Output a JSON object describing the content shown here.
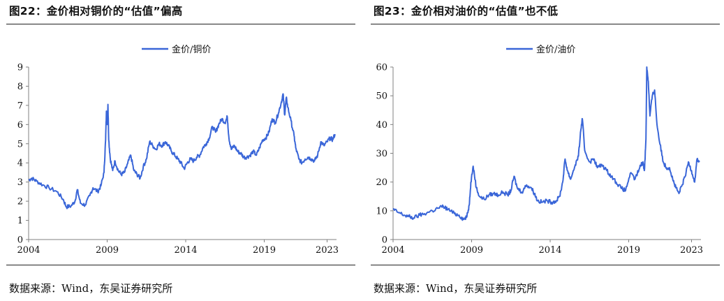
{
  "colors": {
    "series": "#3a66d8",
    "axis": "#808080",
    "rule": "#222222"
  },
  "chart_data": [
    {
      "type": "line",
      "title": "图22：金价相对铜价的“估值”偏高",
      "source": "数据来源：Wind，东吴证券研究所",
      "legend": "金价/铜价",
      "legend_position": "top-center",
      "xlim": [
        2004,
        2023.6
      ],
      "ylim": [
        0,
        9
      ],
      "xticks": [
        2004,
        2009,
        2014,
        2019,
        2023
      ],
      "yticks": [
        0,
        1,
        2,
        3,
        4,
        5,
        6,
        7,
        8,
        9
      ],
      "grid": false,
      "series": [
        {
          "name": "金价/铜价",
          "points": [
            [
              2004.0,
              3.1
            ],
            [
              2004.2,
              3.2
            ],
            [
              2004.5,
              3.05
            ],
            [
              2004.9,
              2.85
            ],
            [
              2005.3,
              2.7
            ],
            [
              2005.8,
              2.5
            ],
            [
              2006.2,
              2.1
            ],
            [
              2006.4,
              1.7
            ],
            [
              2006.7,
              1.75
            ],
            [
              2006.95,
              2.0
            ],
            [
              2007.1,
              2.6
            ],
            [
              2007.3,
              1.9
            ],
            [
              2007.6,
              1.8
            ],
            [
              2007.9,
              2.3
            ],
            [
              2008.1,
              2.7
            ],
            [
              2008.4,
              2.5
            ],
            [
              2008.6,
              2.8
            ],
            [
              2008.8,
              3.5
            ],
            [
              2008.9,
              5.2
            ],
            [
              2008.95,
              6.7
            ],
            [
              2009.0,
              6.0
            ],
            [
              2009.05,
              7.05
            ],
            [
              2009.1,
              5.2
            ],
            [
              2009.2,
              4.2
            ],
            [
              2009.35,
              3.6
            ],
            [
              2009.5,
              4.1
            ],
            [
              2009.7,
              3.6
            ],
            [
              2009.9,
              3.4
            ],
            [
              2010.1,
              3.5
            ],
            [
              2010.3,
              3.95
            ],
            [
              2010.5,
              4.4
            ],
            [
              2010.7,
              3.6
            ],
            [
              2010.9,
              3.4
            ],
            [
              2011.1,
              3.2
            ],
            [
              2011.3,
              3.8
            ],
            [
              2011.5,
              4.2
            ],
            [
              2011.7,
              5.1
            ],
            [
              2011.9,
              4.9
            ],
            [
              2012.1,
              4.7
            ],
            [
              2012.3,
              5.0
            ],
            [
              2012.5,
              4.9
            ],
            [
              2012.7,
              5.1
            ],
            [
              2012.9,
              4.9
            ],
            [
              2013.1,
              4.6
            ],
            [
              2013.3,
              4.4
            ],
            [
              2013.5,
              4.2
            ],
            [
              2013.7,
              4.0
            ],
            [
              2013.9,
              3.7
            ],
            [
              2014.1,
              4.0
            ],
            [
              2014.3,
              4.2
            ],
            [
              2014.5,
              4.1
            ],
            [
              2014.7,
              4.3
            ],
            [
              2014.9,
              4.4
            ],
            [
              2015.1,
              4.8
            ],
            [
              2015.3,
              5.0
            ],
            [
              2015.5,
              5.3
            ],
            [
              2015.7,
              5.9
            ],
            [
              2015.9,
              5.6
            ],
            [
              2016.1,
              6.0
            ],
            [
              2016.3,
              6.3
            ],
            [
              2016.5,
              6.1
            ],
            [
              2016.65,
              6.4
            ],
            [
              2016.75,
              5.3
            ],
            [
              2016.9,
              4.7
            ],
            [
              2017.1,
              4.9
            ],
            [
              2017.3,
              4.6
            ],
            [
              2017.5,
              4.5
            ],
            [
              2017.7,
              4.3
            ],
            [
              2017.9,
              4.3
            ],
            [
              2018.1,
              4.4
            ],
            [
              2018.3,
              4.6
            ],
            [
              2018.5,
              4.4
            ],
            [
              2018.7,
              4.8
            ],
            [
              2018.9,
              5.2
            ],
            [
              2019.1,
              5.3
            ],
            [
              2019.3,
              5.6
            ],
            [
              2019.5,
              6.3
            ],
            [
              2019.7,
              6.1
            ],
            [
              2019.9,
              6.6
            ],
            [
              2020.1,
              7.2
            ],
            [
              2020.2,
              7.6
            ],
            [
              2020.3,
              6.5
            ],
            [
              2020.4,
              7.4
            ],
            [
              2020.5,
              6.9
            ],
            [
              2020.7,
              6.2
            ],
            [
              2020.9,
              5.4
            ],
            [
              2021.0,
              4.8
            ],
            [
              2021.2,
              4.2
            ],
            [
              2021.4,
              4.0
            ],
            [
              2021.6,
              4.2
            ],
            [
              2021.8,
              4.3
            ],
            [
              2022.0,
              4.2
            ],
            [
              2022.2,
              4.1
            ],
            [
              2022.4,
              4.4
            ],
            [
              2022.6,
              5.1
            ],
            [
              2022.8,
              4.9
            ],
            [
              2023.0,
              5.1
            ],
            [
              2023.2,
              5.3
            ],
            [
              2023.35,
              5.2
            ],
            [
              2023.5,
              5.5
            ]
          ]
        }
      ]
    },
    {
      "type": "line",
      "title": "图23：金价相对油价的“估值”也不低",
      "source": "数据来源：Wind，东吴证券研究所",
      "legend": "金价/油价",
      "legend_position": "top-center",
      "xlim": [
        2004,
        2023.6
      ],
      "ylim": [
        0,
        60
      ],
      "xticks": [
        2004,
        2009,
        2014,
        2019,
        2023
      ],
      "yticks": [
        0,
        10,
        20,
        30,
        40,
        50,
        60
      ],
      "grid": false,
      "series": [
        {
          "name": "金价/油价",
          "points": [
            [
              2004.0,
              10.5
            ],
            [
              2004.3,
              9.5
            ],
            [
              2004.7,
              8.5
            ],
            [
              2005.0,
              8.0
            ],
            [
              2005.3,
              7.5
            ],
            [
              2005.7,
              8.5
            ],
            [
              2006.0,
              9.0
            ],
            [
              2006.5,
              10.0
            ],
            [
              2006.9,
              11.0
            ],
            [
              2007.2,
              11.5
            ],
            [
              2007.5,
              10.5
            ],
            [
              2007.9,
              9.0
            ],
            [
              2008.2,
              8.5
            ],
            [
              2008.5,
              7.0
            ],
            [
              2008.7,
              8.0
            ],
            [
              2008.85,
              12.0
            ],
            [
              2008.95,
              20.0
            ],
            [
              2009.1,
              25.5
            ],
            [
              2009.3,
              18.0
            ],
            [
              2009.5,
              15.0
            ],
            [
              2009.8,
              14.0
            ],
            [
              2010.1,
              15.5
            ],
            [
              2010.4,
              16.0
            ],
            [
              2010.7,
              15.5
            ],
            [
              2011.0,
              16.5
            ],
            [
              2011.3,
              15.5
            ],
            [
              2011.5,
              17.0
            ],
            [
              2011.7,
              22.0
            ],
            [
              2011.9,
              18.0
            ],
            [
              2012.2,
              16.5
            ],
            [
              2012.5,
              19.0
            ],
            [
              2012.8,
              18.0
            ],
            [
              2013.0,
              16.0
            ],
            [
              2013.2,
              13.5
            ],
            [
              2013.5,
              13.0
            ],
            [
              2013.8,
              13.5
            ],
            [
              2014.1,
              13.0
            ],
            [
              2014.4,
              13.5
            ],
            [
              2014.6,
              15.0
            ],
            [
              2014.8,
              20.0
            ],
            [
              2014.95,
              28.0
            ],
            [
              2015.1,
              24.0
            ],
            [
              2015.3,
              21.0
            ],
            [
              2015.6,
              26.0
            ],
            [
              2015.8,
              29.0
            ],
            [
              2015.95,
              38.0
            ],
            [
              2016.05,
              42.0
            ],
            [
              2016.2,
              31.0
            ],
            [
              2016.5,
              27.0
            ],
            [
              2016.8,
              28.0
            ],
            [
              2017.0,
              25.0
            ],
            [
              2017.3,
              26.0
            ],
            [
              2017.6,
              24.0
            ],
            [
              2017.9,
              22.0
            ],
            [
              2018.2,
              20.0
            ],
            [
              2018.5,
              18.0
            ],
            [
              2018.8,
              17.0
            ],
            [
              2019.1,
              23.0
            ],
            [
              2019.4,
              21.0
            ],
            [
              2019.7,
              25.0
            ],
            [
              2019.9,
              27.0
            ],
            [
              2020.0,
              24.0
            ],
            [
              2020.1,
              35.0
            ],
            [
              2020.15,
              60.0
            ],
            [
              2020.25,
              55.0
            ],
            [
              2020.35,
              43.0
            ],
            [
              2020.5,
              50.0
            ],
            [
              2020.65,
              52.0
            ],
            [
              2020.8,
              40.0
            ],
            [
              2021.0,
              33.0
            ],
            [
              2021.2,
              27.0
            ],
            [
              2021.4,
              25.0
            ],
            [
              2021.6,
              25.0
            ],
            [
              2021.8,
              21.0
            ],
            [
              2022.0,
              18.0
            ],
            [
              2022.2,
              16.0
            ],
            [
              2022.4,
              19.0
            ],
            [
              2022.6,
              22.0
            ],
            [
              2022.8,
              27.0
            ],
            [
              2023.0,
              24.0
            ],
            [
              2023.2,
              20.0
            ],
            [
              2023.35,
              28.0
            ],
            [
              2023.5,
              27.0
            ]
          ]
        }
      ]
    }
  ]
}
